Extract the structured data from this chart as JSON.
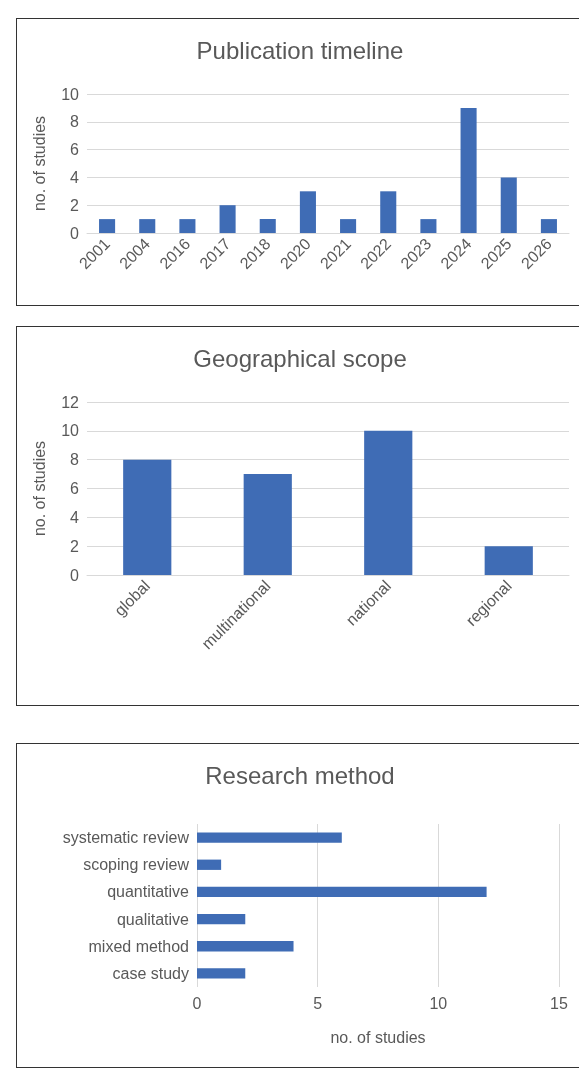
{
  "chart_data": [
    {
      "type": "bar",
      "title": "Publication timeline",
      "ylabel": "no. of studies",
      "categories": [
        "2001",
        "2004",
        "2016",
        "2017",
        "2018",
        "2020",
        "2021",
        "2022",
        "2023",
        "2024",
        "2025",
        "2026"
      ],
      "values": [
        1,
        1,
        1,
        2,
        1,
        3,
        1,
        3,
        1,
        9,
        4,
        1
      ],
      "color": "#3f6cb5",
      "ylim": [
        0,
        10
      ],
      "yticks": [
        0,
        2,
        4,
        6,
        8,
        10
      ],
      "grid": "y"
    },
    {
      "type": "bar",
      "title": "Geographical scope",
      "ylabel": "no. of studies",
      "categories": [
        "global",
        "multinational",
        "national",
        "regional"
      ],
      "values": [
        8,
        7,
        10,
        2
      ],
      "color": "#3f6cb5",
      "ylim": [
        0,
        12
      ],
      "yticks": [
        0,
        2,
        4,
        6,
        8,
        10,
        12
      ],
      "grid": "y"
    },
    {
      "type": "bar",
      "orientation": "horizontal",
      "title": "Research method",
      "xlabel": "no. of studies",
      "categories": [
        "systematic review",
        "scoping review",
        "quantitative",
        "qualitative",
        "mixed method",
        "case study"
      ],
      "values": [
        6,
        1,
        12,
        2,
        4,
        2
      ],
      "color": "#3f6cb5",
      "xlim": [
        0,
        15
      ],
      "xticks": [
        0,
        5,
        10,
        15
      ],
      "grid": "x"
    }
  ]
}
